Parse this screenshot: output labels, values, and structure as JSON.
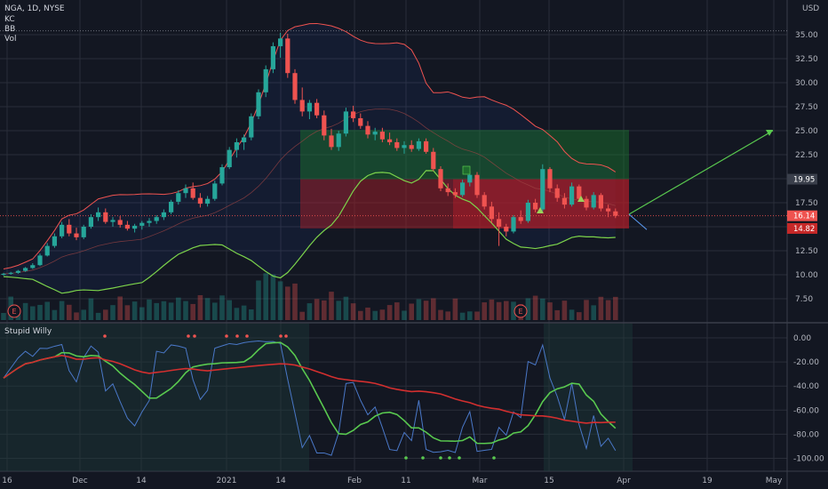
{
  "header": {
    "symbol_line": "NGA, 1D, NYSE",
    "indicators": [
      "KC",
      "BB",
      "Vol"
    ],
    "lower_pane_title": "Stupid Willy",
    "currency": "USD"
  },
  "colors": {
    "background": "#131722",
    "up": "#26a69a",
    "down": "#ef5350",
    "bb_lower": "#7cd34b",
    "kc_line": "#ef5350",
    "long_profit": "#1f6b2e",
    "long_loss": "#7a1e22",
    "target_arrow": "#59c94f"
  },
  "chart_data": [
    {
      "type": "candlestick",
      "title": "NGA, 1D, NYSE",
      "x_tick_labels": [
        "16",
        "Dec",
        "14",
        "2021",
        "14",
        "Feb",
        "11",
        "Mar",
        "15",
        "Apr",
        "19",
        "May"
      ],
      "y_tick_labels": [
        "35.00",
        "32.50",
        "30.00",
        "27.50",
        "25.00",
        "22.50",
        "19.95",
        "17.50",
        "16.14",
        "14.82",
        "12.50",
        "10.00",
        "7.50"
      ],
      "ylim": [
        6.5,
        37
      ],
      "grid": true,
      "markers": [
        "E",
        "E"
      ],
      "position_tool": {
        "entry": 19.95,
        "target": 25.08,
        "stop": 14.82
      },
      "price_labels": [
        {
          "text": "25.08",
          "value": 25.08,
          "color": "#1f6b2e"
        },
        {
          "text": "19.95",
          "value": 19.95,
          "color": "#3a3f4b"
        },
        {
          "text": "16.14",
          "value": 16.14,
          "color": "#ef5350"
        },
        {
          "text": "14.82",
          "value": 14.82,
          "color": "#c62828"
        }
      ],
      "candles": [
        {
          "o": 10.0,
          "h": 10.2,
          "l": 9.9,
          "c": 10.1
        },
        {
          "o": 10.1,
          "h": 10.3,
          "l": 10.0,
          "c": 10.2
        },
        {
          "o": 10.2,
          "h": 10.5,
          "l": 10.1,
          "c": 10.4
        },
        {
          "o": 10.4,
          "h": 10.8,
          "l": 10.3,
          "c": 10.7
        },
        {
          "o": 10.7,
          "h": 11.2,
          "l": 10.6,
          "c": 11.0
        },
        {
          "o": 11.0,
          "h": 12.2,
          "l": 10.9,
          "c": 12.0
        },
        {
          "o": 12.0,
          "h": 13.3,
          "l": 11.9,
          "c": 13.0
        },
        {
          "o": 13.0,
          "h": 14.3,
          "l": 12.8,
          "c": 14.0
        },
        {
          "o": 14.0,
          "h": 15.5,
          "l": 13.8,
          "c": 15.2
        },
        {
          "o": 15.2,
          "h": 15.8,
          "l": 14.0,
          "c": 14.3
        },
        {
          "o": 14.3,
          "h": 14.9,
          "l": 13.6,
          "c": 13.9
        },
        {
          "o": 13.9,
          "h": 15.2,
          "l": 13.7,
          "c": 15.0
        },
        {
          "o": 15.0,
          "h": 16.3,
          "l": 14.8,
          "c": 16.0
        },
        {
          "o": 16.0,
          "h": 17.0,
          "l": 15.6,
          "c": 16.5
        },
        {
          "o": 16.5,
          "h": 16.9,
          "l": 15.3,
          "c": 15.5
        },
        {
          "o": 15.5,
          "h": 16.0,
          "l": 15.0,
          "c": 15.7
        },
        {
          "o": 15.7,
          "h": 16.1,
          "l": 14.9,
          "c": 15.2
        },
        {
          "o": 15.2,
          "h": 15.6,
          "l": 14.6,
          "c": 14.8
        },
        {
          "o": 14.8,
          "h": 15.3,
          "l": 14.4,
          "c": 15.1
        },
        {
          "o": 15.1,
          "h": 15.6,
          "l": 14.7,
          "c": 15.4
        },
        {
          "o": 15.4,
          "h": 15.9,
          "l": 15.0,
          "c": 15.6
        },
        {
          "o": 15.6,
          "h": 16.2,
          "l": 15.3,
          "c": 16.0
        },
        {
          "o": 16.0,
          "h": 16.8,
          "l": 15.7,
          "c": 16.5
        },
        {
          "o": 16.5,
          "h": 17.8,
          "l": 16.3,
          "c": 17.6
        },
        {
          "o": 17.6,
          "h": 18.8,
          "l": 17.3,
          "c": 18.5
        },
        {
          "o": 18.5,
          "h": 19.4,
          "l": 18.0,
          "c": 19.0
        },
        {
          "o": 19.0,
          "h": 19.6,
          "l": 17.8,
          "c": 18.0
        },
        {
          "o": 18.0,
          "h": 18.5,
          "l": 17.0,
          "c": 17.4
        },
        {
          "o": 17.4,
          "h": 18.2,
          "l": 17.1,
          "c": 17.9
        },
        {
          "o": 17.9,
          "h": 19.8,
          "l": 17.7,
          "c": 19.5
        },
        {
          "o": 19.5,
          "h": 21.5,
          "l": 19.3,
          "c": 21.2
        },
        {
          "o": 21.2,
          "h": 23.3,
          "l": 21.0,
          "c": 23.0
        },
        {
          "o": 23.0,
          "h": 24.2,
          "l": 22.2,
          "c": 23.8
        },
        {
          "o": 23.8,
          "h": 24.6,
          "l": 23.0,
          "c": 24.3
        },
        {
          "o": 24.3,
          "h": 26.8,
          "l": 24.0,
          "c": 26.5
        },
        {
          "o": 26.5,
          "h": 29.3,
          "l": 26.2,
          "c": 29.0
        },
        {
          "o": 29.0,
          "h": 31.8,
          "l": 28.5,
          "c": 31.4
        },
        {
          "o": 31.4,
          "h": 34.2,
          "l": 31.0,
          "c": 33.8
        },
        {
          "o": 33.8,
          "h": 35.2,
          "l": 32.6,
          "c": 34.6
        },
        {
          "o": 34.6,
          "h": 35.1,
          "l": 30.5,
          "c": 31.0
        },
        {
          "o": 31.0,
          "h": 31.4,
          "l": 27.8,
          "c": 28.2
        },
        {
          "o": 28.2,
          "h": 29.5,
          "l": 26.5,
          "c": 27.0
        },
        {
          "o": 27.0,
          "h": 28.2,
          "l": 26.2,
          "c": 27.9
        },
        {
          "o": 27.9,
          "h": 28.3,
          "l": 26.3,
          "c": 26.6
        },
        {
          "o": 26.6,
          "h": 27.1,
          "l": 24.0,
          "c": 24.5
        },
        {
          "o": 24.5,
          "h": 25.2,
          "l": 23.0,
          "c": 23.3
        },
        {
          "o": 23.3,
          "h": 25.0,
          "l": 22.9,
          "c": 24.7
        },
        {
          "o": 24.7,
          "h": 27.4,
          "l": 24.4,
          "c": 27.0
        },
        {
          "o": 27.0,
          "h": 27.6,
          "l": 25.9,
          "c": 26.3
        },
        {
          "o": 26.3,
          "h": 26.8,
          "l": 25.2,
          "c": 25.5
        },
        {
          "o": 25.5,
          "h": 26.0,
          "l": 24.2,
          "c": 24.6
        },
        {
          "o": 24.6,
          "h": 25.3,
          "l": 24.0,
          "c": 24.9
        },
        {
          "o": 24.9,
          "h": 25.3,
          "l": 23.8,
          "c": 24.1
        },
        {
          "o": 24.1,
          "h": 24.8,
          "l": 23.5,
          "c": 23.8
        },
        {
          "o": 23.8,
          "h": 24.2,
          "l": 22.9,
          "c": 23.2
        },
        {
          "o": 23.2,
          "h": 23.9,
          "l": 22.6,
          "c": 23.5
        },
        {
          "o": 23.5,
          "h": 24.0,
          "l": 22.8,
          "c": 23.1
        },
        {
          "o": 23.1,
          "h": 24.2,
          "l": 22.9,
          "c": 23.9
        },
        {
          "o": 23.9,
          "h": 24.2,
          "l": 22.6,
          "c": 22.8
        },
        {
          "o": 22.8,
          "h": 23.2,
          "l": 20.8,
          "c": 21.0
        },
        {
          "o": 21.0,
          "h": 21.3,
          "l": 18.7,
          "c": 19.0
        },
        {
          "o": 19.0,
          "h": 19.5,
          "l": 18.2,
          "c": 18.6
        },
        {
          "o": 18.6,
          "h": 19.0,
          "l": 18.0,
          "c": 18.3
        },
        {
          "o": 18.3,
          "h": 19.9,
          "l": 18.1,
          "c": 19.6
        },
        {
          "o": 19.6,
          "h": 20.8,
          "l": 19.2,
          "c": 20.4
        },
        {
          "o": 20.4,
          "h": 20.7,
          "l": 18.0,
          "c": 18.3
        },
        {
          "o": 18.3,
          "h": 18.6,
          "l": 16.8,
          "c": 17.1
        },
        {
          "o": 17.1,
          "h": 17.6,
          "l": 15.4,
          "c": 15.8
        },
        {
          "o": 15.8,
          "h": 16.5,
          "l": 13.0,
          "c": 15.0
        },
        {
          "o": 15.0,
          "h": 15.3,
          "l": 14.0,
          "c": 14.5
        },
        {
          "o": 14.5,
          "h": 16.2,
          "l": 14.3,
          "c": 16.0
        },
        {
          "o": 16.0,
          "h": 16.7,
          "l": 15.3,
          "c": 15.6
        },
        {
          "o": 15.6,
          "h": 17.8,
          "l": 15.4,
          "c": 17.5
        },
        {
          "o": 17.5,
          "h": 17.9,
          "l": 16.5,
          "c": 16.8
        },
        {
          "o": 16.8,
          "h": 21.5,
          "l": 16.6,
          "c": 21.0
        },
        {
          "o": 21.0,
          "h": 21.2,
          "l": 18.6,
          "c": 19.0
        },
        {
          "o": 19.0,
          "h": 19.4,
          "l": 17.6,
          "c": 18.0
        },
        {
          "o": 18.0,
          "h": 18.5,
          "l": 16.9,
          "c": 17.3
        },
        {
          "o": 17.3,
          "h": 19.6,
          "l": 17.1,
          "c": 19.2
        },
        {
          "o": 19.2,
          "h": 19.4,
          "l": 17.6,
          "c": 17.9
        },
        {
          "o": 17.9,
          "h": 18.2,
          "l": 16.7,
          "c": 17.0
        },
        {
          "o": 17.0,
          "h": 18.6,
          "l": 16.8,
          "c": 18.3
        },
        {
          "o": 18.3,
          "h": 18.5,
          "l": 16.6,
          "c": 16.9
        },
        {
          "o": 16.9,
          "h": 17.3,
          "l": 16.0,
          "c": 16.6
        },
        {
          "o": 16.6,
          "h": 16.9,
          "l": 15.9,
          "c": 16.14
        }
      ]
    },
    {
      "type": "line",
      "title": "Stupid Willy",
      "y_tick_labels": [
        "0.00",
        "-20.00",
        "-40.00",
        "-60.00",
        "-80.00",
        "-100.00"
      ],
      "ylim": [
        -108,
        5
      ],
      "x_tick_labels": [
        "16",
        "Dec",
        "14",
        "2021",
        "14",
        "Feb",
        "11",
        "Mar",
        "15",
        "Apr",
        "19",
        "May"
      ]
    }
  ]
}
